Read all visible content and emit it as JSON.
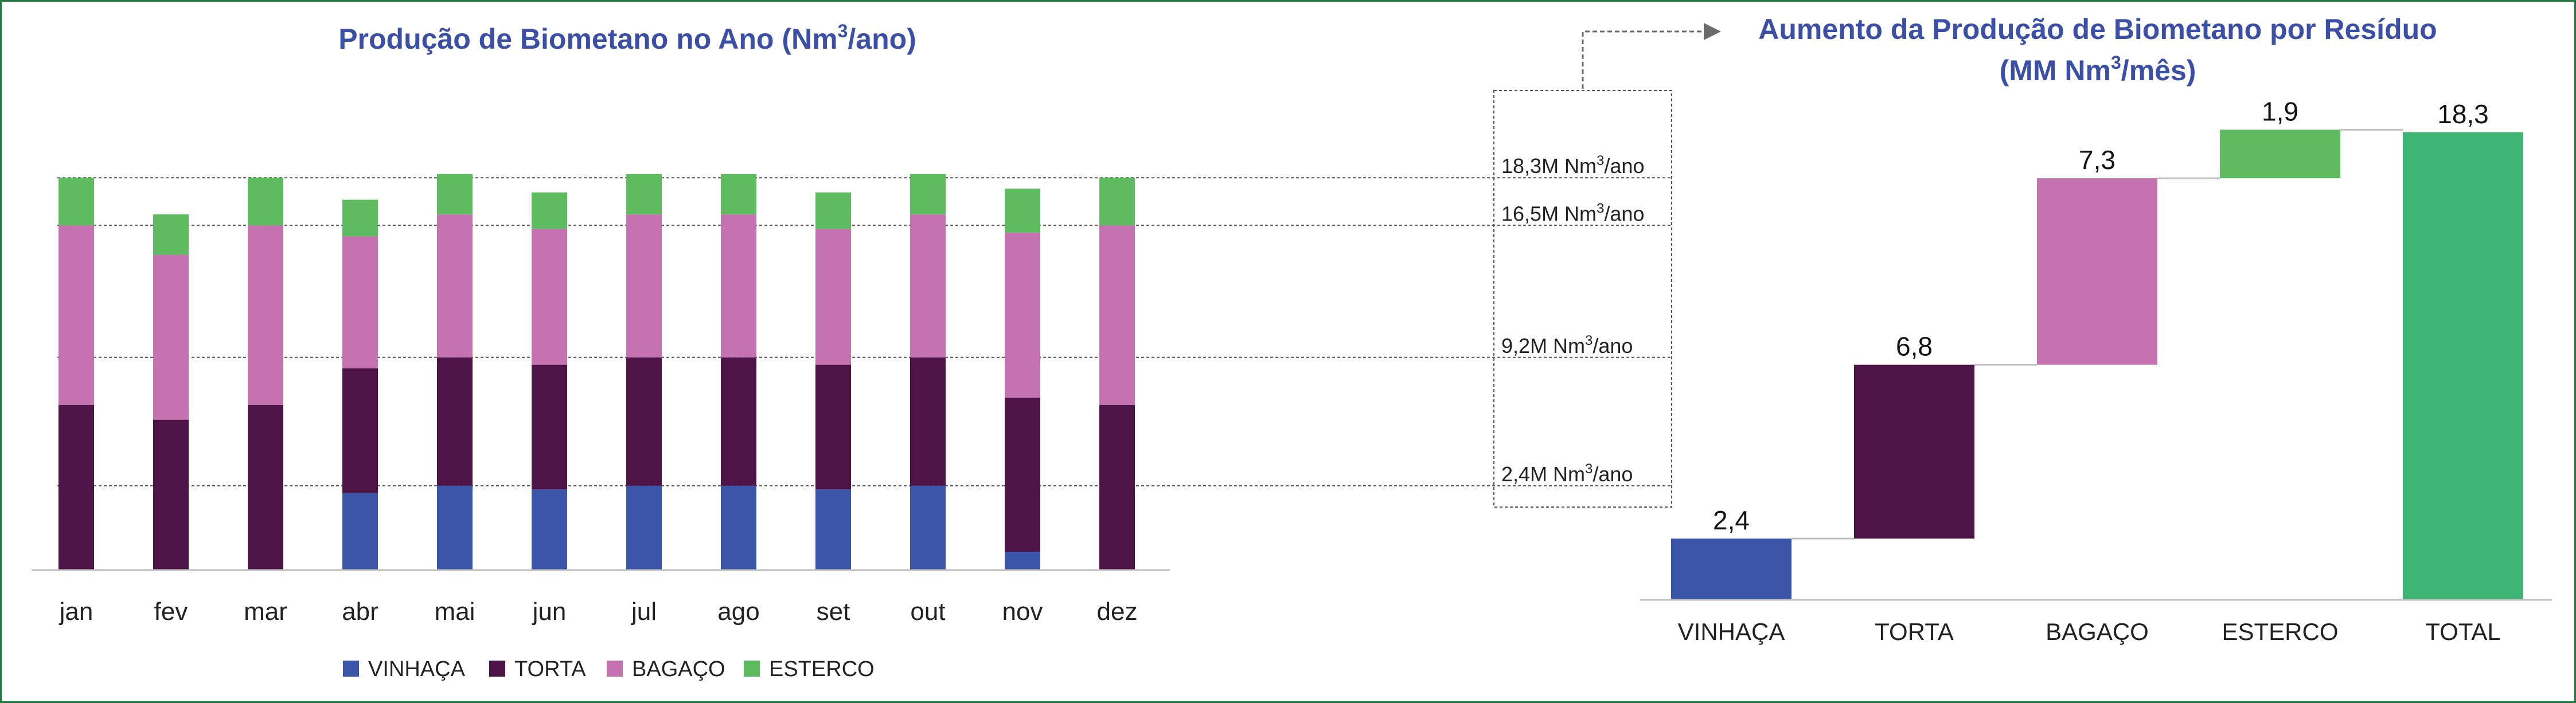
{
  "chart_data": [
    {
      "type": "bar",
      "stacked": true,
      "title": "Produção de Biometano no Ano (Nm",
      "title_sup": "3",
      "title_tail": "/ano)",
      "categories": [
        "jan",
        "fev",
        "mar",
        "abr",
        "mai",
        "jun",
        "jul",
        "ago",
        "set",
        "out",
        "nov",
        "dez"
      ],
      "series": [
        {
          "name": "VINHAÇA",
          "color": "#3b55a8",
          "values": [
            0,
            0,
            0,
            2.1,
            2.3,
            2.2,
            2.3,
            2.3,
            2.2,
            2.3,
            0.5,
            0
          ]
        },
        {
          "name": "TORTA",
          "color": "#4f1447",
          "values": [
            4.5,
            4.1,
            4.5,
            3.4,
            3.5,
            3.4,
            3.5,
            3.5,
            3.4,
            3.5,
            4.2,
            4.5
          ]
        },
        {
          "name": "BAGAÇO",
          "color": "#c473b0",
          "values": [
            4.9,
            4.5,
            4.9,
            3.6,
            3.9,
            3.7,
            3.9,
            3.9,
            3.7,
            3.9,
            4.5,
            4.9
          ]
        },
        {
          "name": "ESTERCO",
          "color": "#5fbb5f",
          "values": [
            1.3,
            1.1,
            1.3,
            1.0,
            1.1,
            1.0,
            1.1,
            1.1,
            1.0,
            1.1,
            1.2,
            1.3
          ]
        }
      ],
      "reference_lines": [
        {
          "value": 10.7,
          "label": "18,3M Nm",
          "unit_sup": "3",
          "unit_tail": "/ano"
        },
        {
          "value": 9.4,
          "label": "16,5M Nm",
          "unit_sup": "3",
          "unit_tail": "/ano"
        },
        {
          "value": 5.8,
          "label": "9,2M Nm",
          "unit_sup": "3",
          "unit_tail": "/ano"
        },
        {
          "value": 2.3,
          "label": "2,4M Nm",
          "unit_sup": "3",
          "unit_tail": "/ano"
        }
      ],
      "ylim": [
        0,
        12
      ],
      "grid": false,
      "legend_position": "bottom"
    },
    {
      "type": "bar",
      "subtype": "waterfall",
      "title_line1": "Aumento da Produção de Biometano por Resíduo",
      "title_line2": "(MM Nm",
      "title_line2_sup": "3",
      "title_line2_tail": "/mês)",
      "categories": [
        "VINHAÇA",
        "TORTA",
        "BAGAÇO",
        "ESTERCO",
        "TOTAL"
      ],
      "values": [
        2.4,
        6.8,
        7.3,
        1.9,
        18.3
      ],
      "labels": [
        "2,4",
        "6,8",
        "7,3",
        "1,9",
        "18,3"
      ],
      "colors": [
        "#3b55a8",
        "#4f1447",
        "#c473b0",
        "#5fbb5f",
        "#3db474"
      ],
      "ylim": [
        0,
        20
      ],
      "grid": false
    }
  ]
}
